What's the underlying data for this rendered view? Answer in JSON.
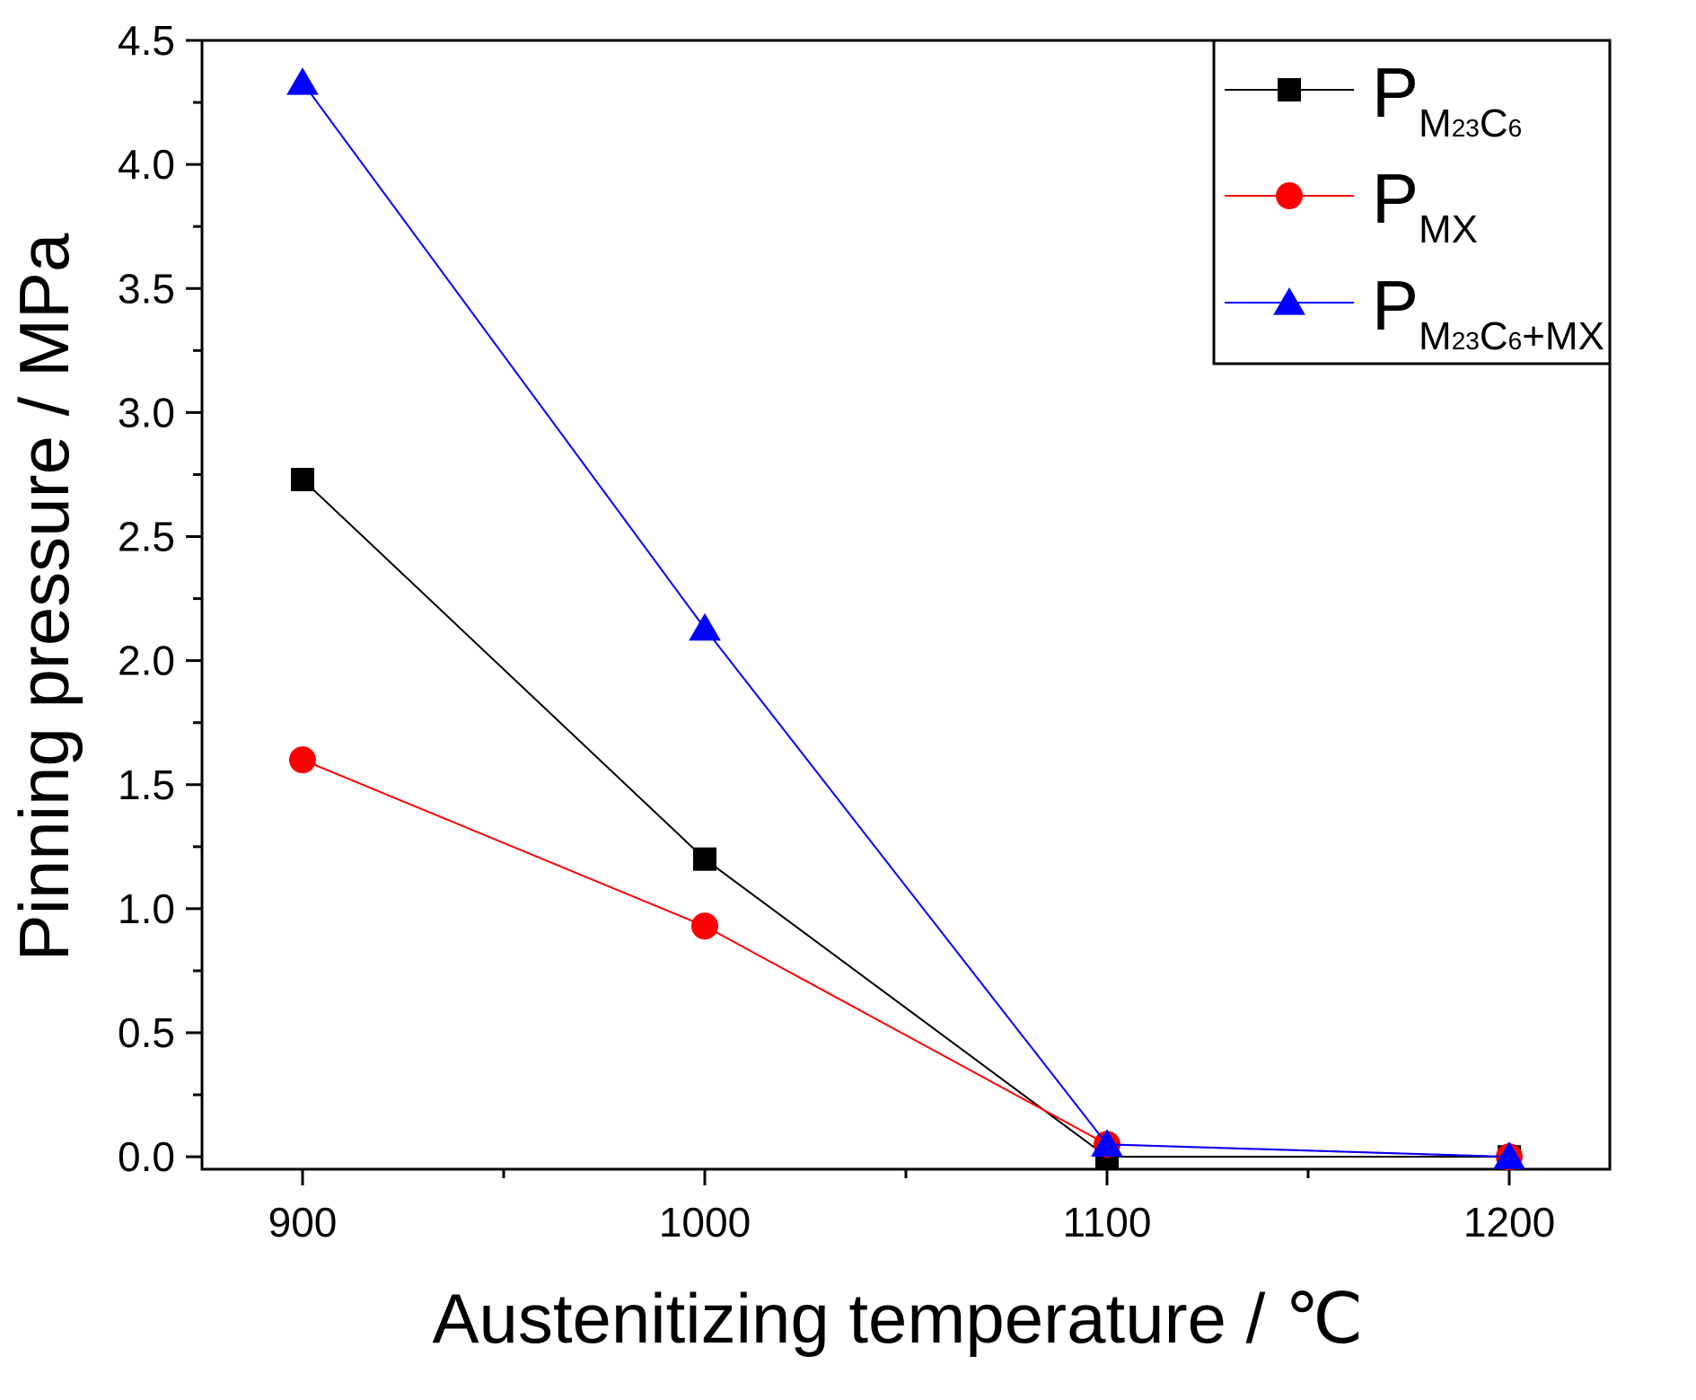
{
  "chart_data": {
    "type": "line",
    "xlabel": "Austenitizing temperature / ℃",
    "ylabel": "Pinning pressure / MPa",
    "xlim": [
      875,
      1225
    ],
    "ylim": [
      -0.05,
      4.5
    ],
    "x_ticks": [
      900,
      1000,
      1100,
      1200
    ],
    "x_tick_labels": [
      "900",
      "1000",
      "1100",
      "1200"
    ],
    "y_ticks": [
      0,
      0.5,
      1,
      1.5,
      2,
      2.5,
      3,
      3.5,
      4,
      4.5
    ],
    "y_tick_labels": [
      "0.0",
      "0.5",
      "1.0",
      "1.5",
      "2.0",
      "2.5",
      "3.0",
      "3.5",
      "4.0",
      "4.5"
    ],
    "x": [
      900,
      1000,
      1100,
      1200
    ],
    "series": [
      {
        "name": "P_M23C6",
        "legend_main": "P",
        "legend_sub_parts": [
          {
            "t": "M",
            "small": false
          },
          {
            "t": "23",
            "small": true
          },
          {
            "t": "C",
            "small": false
          },
          {
            "t": "6",
            "small": true
          }
        ],
        "values": [
          2.73,
          1.2,
          0.0,
          0.0
        ],
        "color": "#000000",
        "marker": "square"
      },
      {
        "name": "P_MX",
        "legend_main": "P",
        "legend_sub_parts": [
          {
            "t": "MX",
            "small": false
          }
        ],
        "values": [
          1.6,
          0.93,
          0.05,
          0.0
        ],
        "color": "#ff0000",
        "marker": "circle"
      },
      {
        "name": "P_M23C6+MX",
        "legend_main": "P",
        "legend_sub_parts": [
          {
            "t": "M",
            "small": false
          },
          {
            "t": "23",
            "small": true
          },
          {
            "t": "C",
            "small": false
          },
          {
            "t": "6",
            "small": true
          },
          {
            "t": "+MX",
            "small": false
          }
        ],
        "values": [
          4.33,
          2.13,
          0.05,
          0.0
        ],
        "color": "#0000ff",
        "marker": "triangle"
      }
    ],
    "legend_position": "top-right",
    "grid": false
  }
}
